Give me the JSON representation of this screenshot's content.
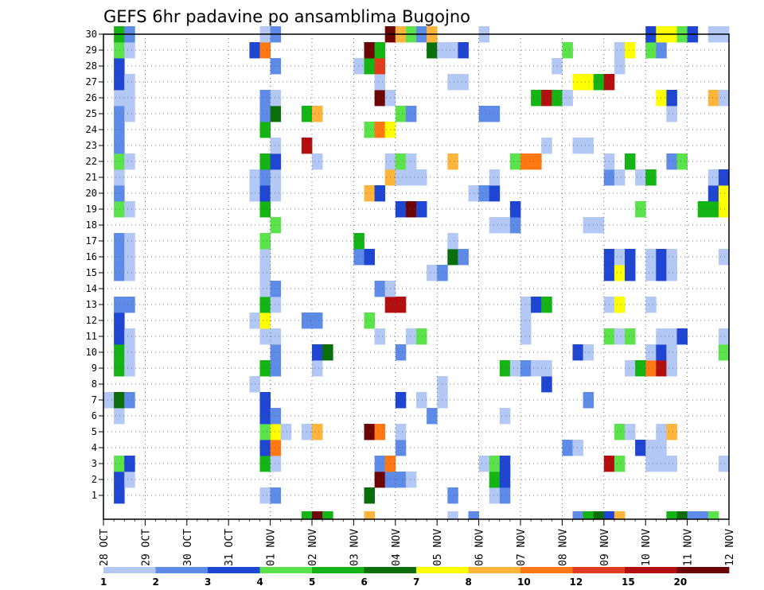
{
  "chart_data": {
    "type": "heatmap",
    "title": "GEFS 6hr padavine po ansamblima Bugojno",
    "y_ticks": [
      "1",
      "2",
      "3",
      "4",
      "5",
      "6",
      "7",
      "8",
      "9",
      "10",
      "11",
      "12",
      "13",
      "14",
      "15",
      "16",
      "17",
      "18",
      "19",
      "20",
      "21",
      "22",
      "23",
      "24",
      "25",
      "26",
      "27",
      "28",
      "29",
      "30"
    ],
    "x_ticks": [
      "28 OCT",
      "29 OCT",
      "30 OCT",
      "31 OCT",
      "01 NOV",
      "02 NOV",
      "03 NOV",
      "04 NOV",
      "05 NOV",
      "06 NOV",
      "07 NOV",
      "08 NOV",
      "09 NOV",
      "10 NOV",
      "11 NOV",
      "12 NOV"
    ],
    "x_range_steps": [
      0,
      60
    ],
    "y_range_members": [
      0,
      30
    ],
    "grid": true,
    "colorbar": {
      "placement": "bottom",
      "labels": [
        "1",
        "2",
        "3",
        "4",
        "5",
        "6",
        "7",
        "8",
        "10",
        "12",
        "15",
        "20"
      ],
      "colors": [
        "#b4c8f5",
        "#5f8be8",
        "#1e46d2",
        "#5ae34b",
        "#14b414",
        "#0a6e0a",
        "#ffff00",
        "#ffb43c",
        "#ff7814",
        "#e13c1e",
        "#b40f0f",
        "#6e0505"
      ]
    },
    "cells": [
      [
        1,
        1,
        3
      ],
      [
        1,
        15,
        1
      ],
      [
        1,
        16,
        2
      ],
      [
        1,
        25,
        6
      ],
      [
        1,
        33,
        2
      ],
      [
        1,
        37,
        1
      ],
      [
        1,
        38,
        2
      ],
      [
        2,
        1,
        3
      ],
      [
        2,
        2,
        1
      ],
      [
        2,
        26,
        12
      ],
      [
        2,
        27,
        2
      ],
      [
        2,
        28,
        2
      ],
      [
        2,
        29,
        1
      ],
      [
        2,
        37,
        5
      ],
      [
        2,
        38,
        3
      ],
      [
        3,
        1,
        4
      ],
      [
        3,
        2,
        3
      ],
      [
        3,
        15,
        5
      ],
      [
        3,
        16,
        1
      ],
      [
        3,
        26,
        2
      ],
      [
        3,
        27,
        9
      ],
      [
        3,
        36,
        1
      ],
      [
        3,
        37,
        4
      ],
      [
        3,
        38,
        3
      ],
      [
        3,
        48,
        11
      ],
      [
        3,
        49,
        4
      ],
      [
        3,
        52,
        1
      ],
      [
        3,
        53,
        1
      ],
      [
        3,
        54,
        1
      ],
      [
        3,
        59,
        1
      ],
      [
        4,
        15,
        3
      ],
      [
        4,
        16,
        9
      ],
      [
        4,
        28,
        2
      ],
      [
        4,
        44,
        2
      ],
      [
        4,
        45,
        1
      ],
      [
        4,
        51,
        3
      ],
      [
        4,
        52,
        1
      ],
      [
        4,
        53,
        1
      ],
      [
        5,
        15,
        4
      ],
      [
        5,
        16,
        7
      ],
      [
        5,
        17,
        1
      ],
      [
        5,
        19,
        1
      ],
      [
        5,
        20,
        8
      ],
      [
        5,
        25,
        12
      ],
      [
        5,
        26,
        9
      ],
      [
        5,
        28,
        1
      ],
      [
        5,
        49,
        4
      ],
      [
        5,
        50,
        1
      ],
      [
        5,
        53,
        1
      ],
      [
        5,
        54,
        8
      ],
      [
        6,
        1,
        1
      ],
      [
        6,
        15,
        3
      ],
      [
        6,
        16,
        2
      ],
      [
        6,
        31,
        2
      ],
      [
        6,
        38,
        1
      ],
      [
        7,
        0,
        1
      ],
      [
        7,
        1,
        6
      ],
      [
        7,
        2,
        2
      ],
      [
        7,
        15,
        3
      ],
      [
        7,
        28,
        3
      ],
      [
        7,
        30,
        1
      ],
      [
        7,
        32,
        1
      ],
      [
        7,
        46,
        2
      ],
      [
        8,
        14,
        1
      ],
      [
        8,
        32,
        1
      ],
      [
        8,
        42,
        3
      ],
      [
        9,
        1,
        5
      ],
      [
        9,
        2,
        1
      ],
      [
        9,
        15,
        5
      ],
      [
        9,
        16,
        2
      ],
      [
        9,
        20,
        1
      ],
      [
        9,
        38,
        5
      ],
      [
        9,
        39,
        1
      ],
      [
        9,
        40,
        2
      ],
      [
        9,
        41,
        1
      ],
      [
        9,
        42,
        1
      ],
      [
        9,
        50,
        1
      ],
      [
        9,
        51,
        5
      ],
      [
        9,
        52,
        9
      ],
      [
        9,
        53,
        11
      ],
      [
        9,
        54,
        1
      ],
      [
        10,
        1,
        5
      ],
      [
        10,
        2,
        1
      ],
      [
        10,
        16,
        2
      ],
      [
        10,
        20,
        3
      ],
      [
        10,
        21,
        6
      ],
      [
        10,
        28,
        2
      ],
      [
        10,
        45,
        3
      ],
      [
        10,
        46,
        1
      ],
      [
        10,
        52,
        1
      ],
      [
        10,
        53,
        3
      ],
      [
        10,
        54,
        1
      ],
      [
        10,
        59,
        4
      ],
      [
        11,
        1,
        3
      ],
      [
        11,
        2,
        1
      ],
      [
        11,
        15,
        1
      ],
      [
        11,
        16,
        1
      ],
      [
        11,
        26,
        1
      ],
      [
        11,
        29,
        1
      ],
      [
        11,
        30,
        4
      ],
      [
        11,
        40,
        1
      ],
      [
        11,
        48,
        4
      ],
      [
        11,
        49,
        1
      ],
      [
        11,
        50,
        4
      ],
      [
        11,
        53,
        1
      ],
      [
        11,
        54,
        1
      ],
      [
        11,
        55,
        3
      ],
      [
        11,
        59,
        1
      ],
      [
        12,
        1,
        3
      ],
      [
        12,
        14,
        1
      ],
      [
        12,
        15,
        7
      ],
      [
        12,
        19,
        2
      ],
      [
        12,
        20,
        2
      ],
      [
        12,
        25,
        4
      ],
      [
        12,
        40,
        1
      ],
      [
        13,
        1,
        2
      ],
      [
        13,
        2,
        2
      ],
      [
        13,
        15,
        5
      ],
      [
        13,
        16,
        1
      ],
      [
        13,
        27,
        11
      ],
      [
        13,
        28,
        11
      ],
      [
        13,
        40,
        1
      ],
      [
        13,
        41,
        3
      ],
      [
        13,
        42,
        5
      ],
      [
        13,
        48,
        1
      ],
      [
        13,
        49,
        7
      ],
      [
        13,
        52,
        1
      ],
      [
        14,
        15,
        1
      ],
      [
        14,
        16,
        2
      ],
      [
        14,
        26,
        2
      ],
      [
        14,
        27,
        1
      ],
      [
        15,
        1,
        2
      ],
      [
        15,
        2,
        1
      ],
      [
        15,
        15,
        1
      ],
      [
        15,
        31,
        1
      ],
      [
        15,
        32,
        2
      ],
      [
        15,
        48,
        3
      ],
      [
        15,
        49,
        7
      ],
      [
        15,
        50,
        3
      ],
      [
        15,
        52,
        1
      ],
      [
        15,
        53,
        3
      ],
      [
        15,
        54,
        1
      ],
      [
        16,
        1,
        2
      ],
      [
        16,
        2,
        1
      ],
      [
        16,
        15,
        1
      ],
      [
        16,
        24,
        2
      ],
      [
        16,
        25,
        3
      ],
      [
        16,
        33,
        6
      ],
      [
        16,
        34,
        2
      ],
      [
        16,
        48,
        3
      ],
      [
        16,
        49,
        1
      ],
      [
        16,
        50,
        3
      ],
      [
        16,
        52,
        1
      ],
      [
        16,
        53,
        3
      ],
      [
        16,
        54,
        1
      ],
      [
        16,
        59,
        1
      ],
      [
        17,
        1,
        2
      ],
      [
        17,
        2,
        1
      ],
      [
        17,
        15,
        4
      ],
      [
        17,
        24,
        5
      ],
      [
        17,
        33,
        1
      ],
      [
        18,
        16,
        4
      ],
      [
        18,
        37,
        1
      ],
      [
        18,
        38,
        1
      ],
      [
        18,
        39,
        2
      ],
      [
        18,
        46,
        1
      ],
      [
        18,
        47,
        1
      ],
      [
        19,
        1,
        4
      ],
      [
        19,
        2,
        1
      ],
      [
        19,
        15,
        5
      ],
      [
        19,
        28,
        3
      ],
      [
        19,
        29,
        12
      ],
      [
        19,
        30,
        3
      ],
      [
        19,
        39,
        3
      ],
      [
        19,
        51,
        4
      ],
      [
        19,
        57,
        5
      ],
      [
        19,
        58,
        5
      ],
      [
        19,
        59,
        7
      ],
      [
        20,
        1,
        2
      ],
      [
        20,
        14,
        1
      ],
      [
        20,
        15,
        3
      ],
      [
        20,
        16,
        1
      ],
      [
        20,
        25,
        8
      ],
      [
        20,
        26,
        3
      ],
      [
        20,
        35,
        1
      ],
      [
        20,
        36,
        2
      ],
      [
        20,
        37,
        3
      ],
      [
        20,
        58,
        3
      ],
      [
        20,
        59,
        7
      ],
      [
        21,
        1,
        1
      ],
      [
        21,
        14,
        1
      ],
      [
        21,
        15,
        2
      ],
      [
        21,
        16,
        1
      ],
      [
        21,
        27,
        8
      ],
      [
        21,
        28,
        1
      ],
      [
        21,
        29,
        1
      ],
      [
        21,
        30,
        1
      ],
      [
        21,
        37,
        1
      ],
      [
        21,
        48,
        2
      ],
      [
        21,
        49,
        1
      ],
      [
        21,
        51,
        1
      ],
      [
        21,
        52,
        5
      ],
      [
        21,
        58,
        1
      ],
      [
        21,
        59,
        3
      ],
      [
        22,
        1,
        4
      ],
      [
        22,
        2,
        1
      ],
      [
        22,
        15,
        5
      ],
      [
        22,
        16,
        3
      ],
      [
        22,
        20,
        1
      ],
      [
        22,
        27,
        1
      ],
      [
        22,
        28,
        4
      ],
      [
        22,
        29,
        1
      ],
      [
        22,
        33,
        8
      ],
      [
        22,
        39,
        4
      ],
      [
        22,
        40,
        9
      ],
      [
        22,
        41,
        9
      ],
      [
        22,
        48,
        1
      ],
      [
        22,
        50,
        5
      ],
      [
        22,
        54,
        2
      ],
      [
        22,
        55,
        4
      ],
      [
        23,
        1,
        2
      ],
      [
        23,
        16,
        1
      ],
      [
        23,
        19,
        11
      ],
      [
        23,
        42,
        1
      ],
      [
        23,
        45,
        1
      ],
      [
        23,
        46,
        1
      ],
      [
        24,
        1,
        2
      ],
      [
        24,
        15,
        5
      ],
      [
        24,
        25,
        4
      ],
      [
        24,
        26,
        9
      ],
      [
        24,
        27,
        7
      ],
      [
        25,
        1,
        2
      ],
      [
        25,
        2,
        1
      ],
      [
        25,
        15,
        2
      ],
      [
        25,
        16,
        6
      ],
      [
        25,
        19,
        5
      ],
      [
        25,
        20,
        8
      ],
      [
        25,
        28,
        4
      ],
      [
        25,
        29,
        2
      ],
      [
        25,
        36,
        2
      ],
      [
        25,
        37,
        2
      ],
      [
        25,
        54,
        1
      ],
      [
        26,
        1,
        1
      ],
      [
        26,
        2,
        1
      ],
      [
        26,
        15,
        2
      ],
      [
        26,
        16,
        1
      ],
      [
        26,
        26,
        12
      ],
      [
        26,
        27,
        1
      ],
      [
        26,
        41,
        5
      ],
      [
        26,
        42,
        11
      ],
      [
        26,
        43,
        5
      ],
      [
        26,
        44,
        1
      ],
      [
        26,
        53,
        7
      ],
      [
        26,
        54,
        3
      ],
      [
        26,
        58,
        8
      ],
      [
        26,
        59,
        1
      ],
      [
        27,
        1,
        3
      ],
      [
        27,
        2,
        1
      ],
      [
        27,
        26,
        1
      ],
      [
        27,
        33,
        1
      ],
      [
        27,
        34,
        1
      ],
      [
        27,
        45,
        7
      ],
      [
        27,
        46,
        7
      ],
      [
        27,
        47,
        5
      ],
      [
        27,
        48,
        11
      ],
      [
        28,
        1,
        3
      ],
      [
        28,
        16,
        2
      ],
      [
        28,
        24,
        1
      ],
      [
        28,
        25,
        5
      ],
      [
        28,
        26,
        10
      ],
      [
        28,
        43,
        1
      ],
      [
        28,
        49,
        1
      ],
      [
        29,
        1,
        4
      ],
      [
        29,
        2,
        1
      ],
      [
        29,
        14,
        3
      ],
      [
        29,
        15,
        9
      ],
      [
        29,
        25,
        12
      ],
      [
        29,
        26,
        5
      ],
      [
        29,
        31,
        6
      ],
      [
        29,
        32,
        1
      ],
      [
        29,
        33,
        1
      ],
      [
        29,
        34,
        3
      ],
      [
        29,
        44,
        4
      ],
      [
        29,
        49,
        1
      ],
      [
        29,
        50,
        7
      ],
      [
        29,
        52,
        4
      ],
      [
        29,
        53,
        2
      ],
      [
        30,
        1,
        5
      ],
      [
        30,
        2,
        2
      ],
      [
        30,
        15,
        1
      ],
      [
        30,
        16,
        2
      ],
      [
        30,
        27,
        12
      ],
      [
        30,
        28,
        8
      ],
      [
        30,
        29,
        4
      ],
      [
        30,
        30,
        2
      ],
      [
        30,
        31,
        8
      ],
      [
        30,
        36,
        1
      ],
      [
        30,
        52,
        3
      ],
      [
        30,
        53,
        7
      ],
      [
        30,
        54,
        7
      ],
      [
        30,
        55,
        4
      ],
      [
        30,
        56,
        3
      ],
      [
        30,
        58,
        1
      ],
      [
        30,
        59,
        1
      ],
      [
        0,
        19,
        5
      ],
      [
        0,
        20,
        12
      ],
      [
        0,
        21,
        5
      ],
      [
        0,
        25,
        8
      ],
      [
        0,
        33,
        1
      ],
      [
        0,
        35,
        2
      ],
      [
        0,
        45,
        2
      ],
      [
        0,
        46,
        5
      ],
      [
        0,
        47,
        6
      ],
      [
        0,
        48,
        3
      ],
      [
        0,
        49,
        8
      ],
      [
        0,
        54,
        5
      ],
      [
        0,
        55,
        6
      ],
      [
        0,
        56,
        2
      ],
      [
        0,
        57,
        2
      ],
      [
        0,
        58,
        4
      ]
    ]
  }
}
